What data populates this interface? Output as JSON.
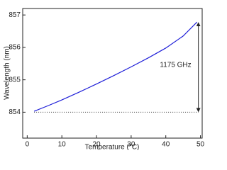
{
  "chart_data": {
    "type": "line",
    "x_label": "Temperature (°C)",
    "y_label": "Wavelength (nm)",
    "x": [
      2,
      6,
      10,
      15,
      20,
      25,
      30,
      35,
      40,
      45,
      49
    ],
    "series": [
      {
        "name": "Wavelength",
        "color": "#1f1fd8",
        "values": [
          854.03,
          854.2,
          854.38,
          854.62,
          854.87,
          855.13,
          855.4,
          855.68,
          855.98,
          856.35,
          856.78
        ]
      }
    ],
    "xlim": [
      -1.3,
      50.5
    ],
    "xticks": [
      0,
      10,
      20,
      30,
      40,
      50
    ],
    "ylim": [
      853.2,
      857.2
    ],
    "yticks": [
      854,
      855,
      856,
      857
    ],
    "reference_line": 854,
    "reference_color": "#333333",
    "annotation": "1175 GHz"
  }
}
